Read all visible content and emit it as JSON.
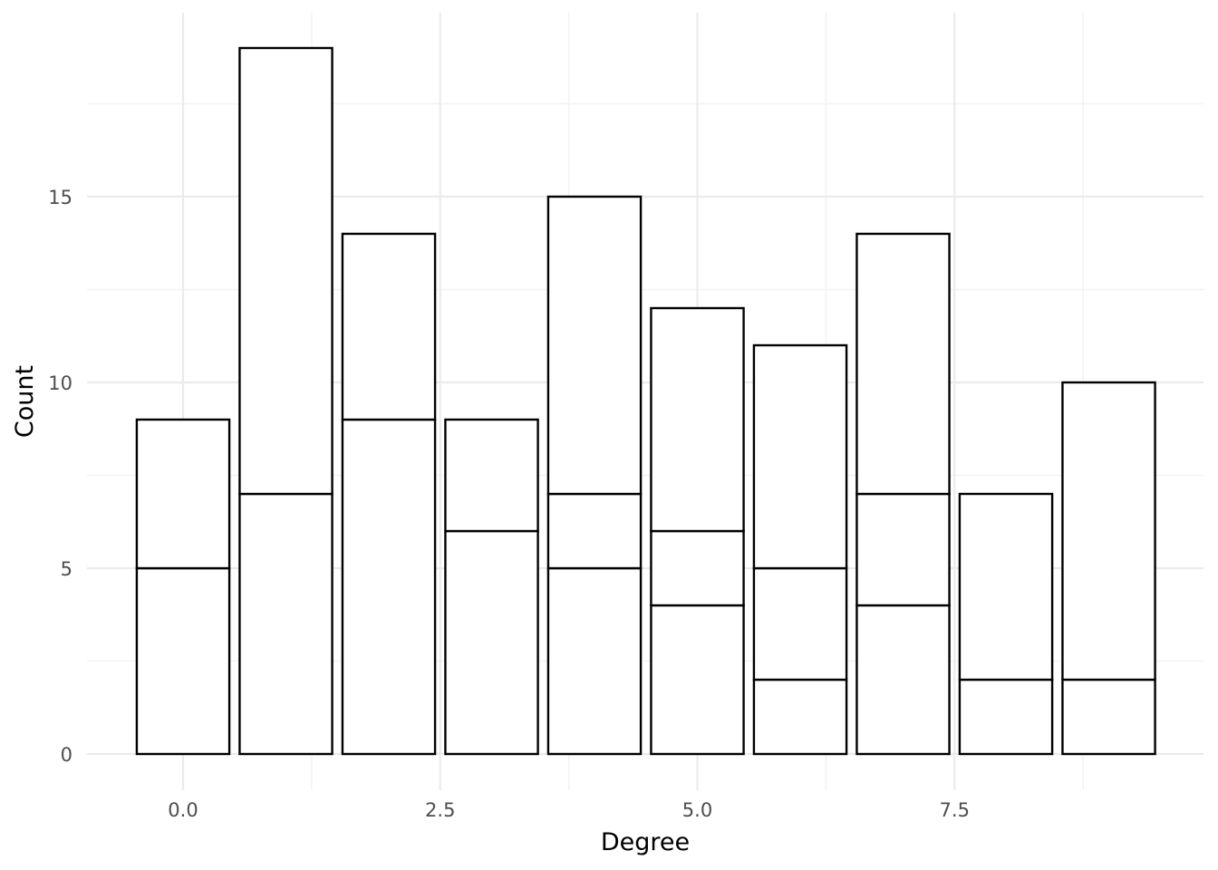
{
  "chart_data": {
    "type": "bar",
    "stacked": true,
    "x": [
      0,
      1,
      2,
      3,
      4,
      5,
      6,
      7,
      8,
      9
    ],
    "segments": [
      [
        5,
        4
      ],
      [
        7,
        12
      ],
      [
        9,
        5
      ],
      [
        6,
        3
      ],
      [
        5,
        2,
        8
      ],
      [
        4,
        2,
        6
      ],
      [
        2,
        3,
        6
      ],
      [
        4,
        3,
        7
      ],
      [
        2,
        5
      ],
      [
        2,
        8
      ]
    ],
    "totals": [
      9,
      19,
      14,
      9,
      15,
      12,
      11,
      14,
      7,
      10
    ],
    "xlabel": "Degree",
    "ylabel": "Count",
    "xlim": [
      -0.95,
      9.95
    ],
    "ylim": [
      -0.95,
      20
    ],
    "x_ticks": [
      0.0,
      2.5,
      5.0,
      7.5
    ],
    "x_tick_labels": [
      "0.0",
      "2.5",
      "5.0",
      "7.5"
    ],
    "y_ticks": [
      0,
      5,
      10,
      15
    ],
    "y_tick_labels": [
      "0",
      "5",
      "10",
      "15"
    ],
    "grid": true,
    "legend": "none",
    "colors": {
      "bar_fill": "#ffffff",
      "bar_outline": "#000000",
      "grid": "#ebebeb"
    }
  }
}
